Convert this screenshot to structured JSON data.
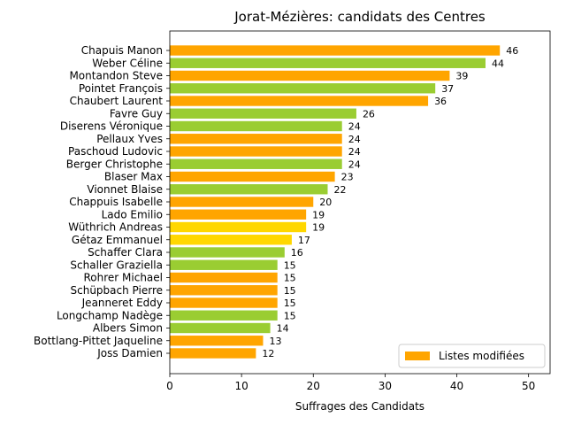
{
  "chart_data": {
    "type": "bar",
    "orientation": "horizontal",
    "title": "Jorat-Mézières: candidats des Centres",
    "xlabel": "Suffrages des Candidats",
    "ylabel": "",
    "xlim": [
      0,
      53
    ],
    "xticks": [
      0,
      10,
      20,
      30,
      40,
      50
    ],
    "grid": false,
    "legend": {
      "position": "bottom-right",
      "entries": [
        {
          "label": "Listes modifiées",
          "color": "#FFA500"
        }
      ]
    },
    "bars": [
      {
        "name": "Chapuis Manon",
        "value": 46,
        "color": "#FFA500"
      },
      {
        "name": "Weber Céline",
        "value": 44,
        "color": "#9ACD32"
      },
      {
        "name": "Montandon Steve",
        "value": 39,
        "color": "#FFA500"
      },
      {
        "name": "Pointet François",
        "value": 37,
        "color": "#9ACD32"
      },
      {
        "name": "Chaubert Laurent",
        "value": 36,
        "color": "#FFA500"
      },
      {
        "name": "Favre Guy",
        "value": 26,
        "color": "#9ACD32"
      },
      {
        "name": "Diserens Véronique",
        "value": 24,
        "color": "#9ACD32"
      },
      {
        "name": "Pellaux Yves",
        "value": 24,
        "color": "#FFA500"
      },
      {
        "name": "Paschoud Ludovic",
        "value": 24,
        "color": "#FFA500"
      },
      {
        "name": "Berger Christophe",
        "value": 24,
        "color": "#9ACD32"
      },
      {
        "name": "Blaser Max",
        "value": 23,
        "color": "#FFA500"
      },
      {
        "name": "Vionnet Blaise",
        "value": 22,
        "color": "#9ACD32"
      },
      {
        "name": "Chappuis Isabelle",
        "value": 20,
        "color": "#FFA500"
      },
      {
        "name": "Lado Emilio",
        "value": 19,
        "color": "#FFA500"
      },
      {
        "name": "Wüthrich Andreas",
        "value": 19,
        "color": "#FFD700"
      },
      {
        "name": "Gétaz Emmanuel",
        "value": 17,
        "color": "#FFD700"
      },
      {
        "name": "Schaffer Clara",
        "value": 16,
        "color": "#9ACD32"
      },
      {
        "name": "Schaller Graziella",
        "value": 15,
        "color": "#9ACD32"
      },
      {
        "name": "Rohrer Michael",
        "value": 15,
        "color": "#FFA500"
      },
      {
        "name": "Schüpbach Pierre",
        "value": 15,
        "color": "#FFA500"
      },
      {
        "name": "Jeanneret Eddy",
        "value": 15,
        "color": "#FFA500"
      },
      {
        "name": "Longchamp Nadège",
        "value": 15,
        "color": "#9ACD32"
      },
      {
        "name": "Albers Simon",
        "value": 14,
        "color": "#9ACD32"
      },
      {
        "name": "Bottlang-Pittet Jaqueline",
        "value": 13,
        "color": "#FFA500"
      },
      {
        "name": "Joss Damien",
        "value": 12,
        "color": "#FFA500"
      }
    ]
  }
}
